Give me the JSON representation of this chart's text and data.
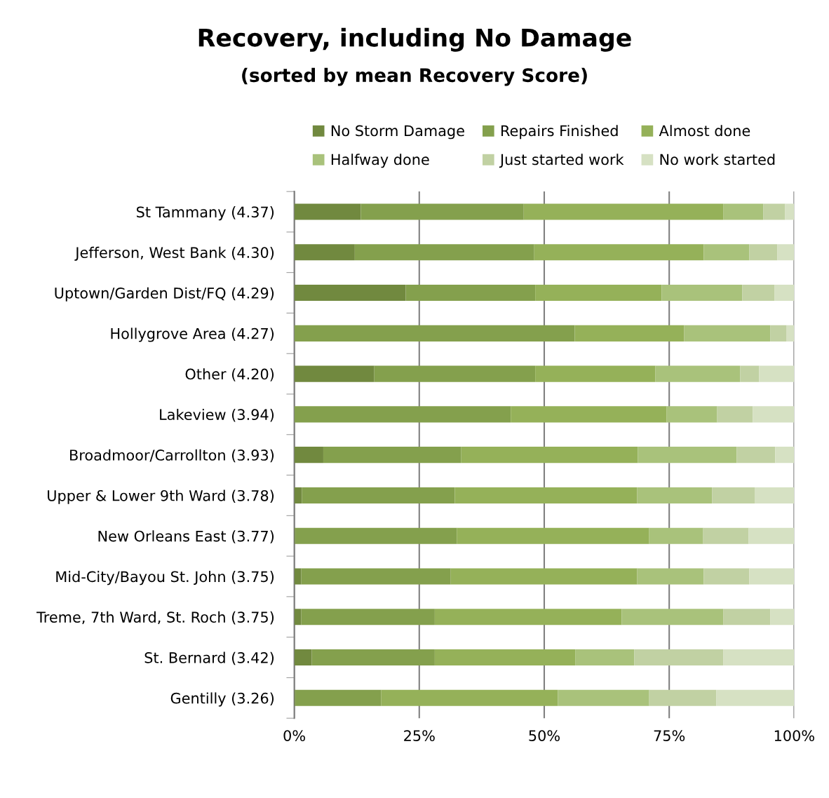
{
  "chart_data": {
    "type": "bar",
    "orientation": "horizontal",
    "stacked": true,
    "title": "Recovery, including No Damage",
    "subtitle": "(sorted by mean Recovery Score)",
    "categories": [
      "St Tammany (4.37)",
      "Jefferson, West Bank (4.30)",
      "Uptown/Garden Dist/FQ (4.29)",
      "Hollygrove Area (4.27)",
      "Other (4.20)",
      "Lakeview (3.94)",
      "Broadmoor/Carrollton (3.93)",
      "Upper & Lower 9th Ward (3.78)",
      "New Orleans East (3.77)",
      "Mid-City/Bayou St. John (3.75)",
      "Treme, 7th Ward, St. Roch (3.75)",
      "St. Bernard (3.42)",
      "Gentilly (3.26)"
    ],
    "series": [
      {
        "name": "No Storm Damage",
        "color": "#71893f",
        "values": [
          13.3,
          12.1,
          22.3,
          0,
          16.0,
          0,
          5.8,
          1.5,
          0.3,
          1.4,
          1.4,
          3.5,
          0.3
        ]
      },
      {
        "name": "Repairs Finished",
        "color": "#84a04d",
        "values": [
          32.6,
          35.9,
          25.9,
          56.1,
          32.2,
          43.3,
          27.6,
          30.6,
          32.2,
          29.9,
          26.7,
          24.6,
          17.1
        ]
      },
      {
        "name": "Almost done",
        "color": "#95b159",
        "values": [
          39.9,
          33.9,
          25.3,
          21.9,
          24.0,
          31.2,
          35.3,
          36.5,
          38.5,
          37.3,
          37.4,
          28.1,
          35.3
        ]
      },
      {
        "name": "Halfway done",
        "color": "#a9c27b",
        "values": [
          8.0,
          9.1,
          16.1,
          17.2,
          17.0,
          10.1,
          19.8,
          15.0,
          10.8,
          13.3,
          20.3,
          11.8,
          18.3
        ]
      },
      {
        "name": "Just started work",
        "color": "#c1d1a3",
        "values": [
          4.4,
          5.6,
          6.5,
          3.3,
          3.8,
          7.1,
          7.7,
          8.5,
          9.1,
          9.1,
          9.4,
          17.8,
          13.4
        ]
      },
      {
        "name": "No work started",
        "color": "#d6e1c3",
        "values": [
          1.8,
          3.4,
          3.9,
          1.5,
          7.0,
          8.3,
          3.8,
          7.9,
          9.1,
          9.0,
          4.8,
          14.2,
          15.6
        ]
      }
    ],
    "xlim": [
      0,
      100
    ],
    "xticks": [
      {
        "value": 0,
        "label": "0%"
      },
      {
        "value": 25,
        "label": "25%"
      },
      {
        "value": 50,
        "label": "50%"
      },
      {
        "value": 75,
        "label": "75%"
      },
      {
        "value": 100,
        "label": "100%"
      }
    ],
    "grid": "x",
    "legend": "top"
  }
}
